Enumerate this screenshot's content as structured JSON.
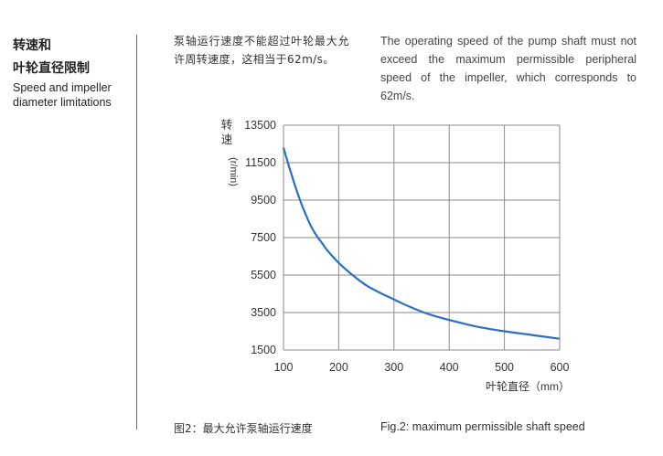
{
  "section": {
    "title_zh_line1": "转速和",
    "title_zh_line2": "叶轮直径限制",
    "title_en": "Speed and impeller diameter limitations"
  },
  "text": {
    "zh": "泵轴运行速度不能超过叶轮最大允许周转速度，这相当于62m/s。",
    "en": "The operating speed of the pump shaft must not exceed the maximum permissible peripheral speed of the impeller, which corresponds to 62m/s."
  },
  "caption": {
    "zh": "图2：最大允许泵轴运行速度",
    "en": "Fig.2: maximum permissible shaft speed"
  },
  "chart_data": {
    "type": "line",
    "title": "",
    "xlabel": "叶轮直径（mm）",
    "ylabel_chars": [
      "转",
      "速"
    ],
    "ylabel_unit": "(r/min)",
    "xlim": [
      100,
      600
    ],
    "ylim": [
      1500,
      13500
    ],
    "xticks": [
      100,
      200,
      300,
      400,
      500,
      600
    ],
    "yticks": [
      13500,
      11500,
      9500,
      7500,
      5500,
      3500,
      1500
    ],
    "grid": true,
    "series": [
      {
        "color": "#2d6fc0",
        "x": [
          100,
          110,
          120,
          130,
          140,
          150,
          160,
          170,
          180,
          200,
          225,
          250,
          275,
          300,
          325,
          350,
          375,
          400,
          450,
          500,
          550,
          600
        ],
        "y": [
          12300,
          11300,
          10350,
          9500,
          8750,
          8100,
          7600,
          7200,
          6800,
          6150,
          5500,
          4950,
          4550,
          4200,
          3850,
          3550,
          3300,
          3100,
          2750,
          2500,
          2300,
          2100
        ]
      }
    ]
  }
}
